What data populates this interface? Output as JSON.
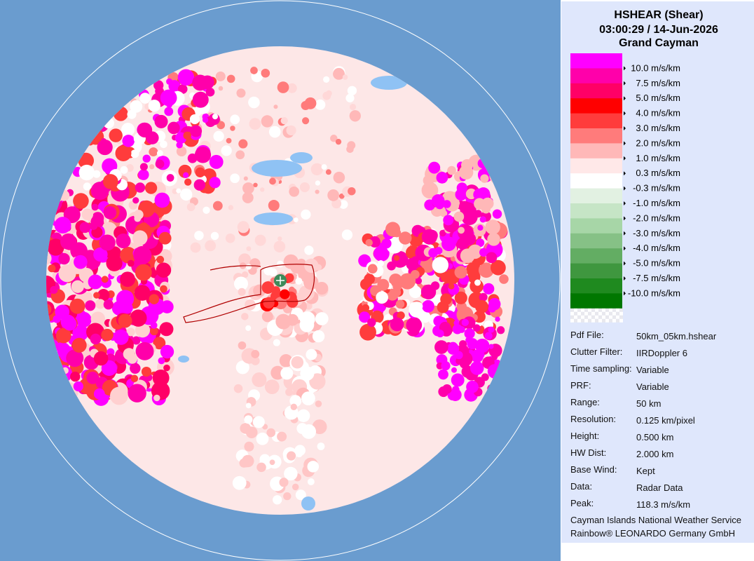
{
  "header": {
    "title": "HSHEAR (Shear)",
    "time": "03:00:29 / 14-Jun-2026",
    "location": "Grand Cayman"
  },
  "legend": {
    "colors": [
      "#ff00ff",
      "#ff00aa",
      "#ff0066",
      "#ff0000",
      "#ff3c3c",
      "#ff7b7b",
      "#ffb8b8",
      "#ffe8e8",
      "#ffffff",
      "#e2f1e2",
      "#c6e5c6",
      "#a7d6a7",
      "#86c186",
      "#63ad63",
      "#3f973f",
      "#1f8a1f",
      "#007700"
    ],
    "labels": [
      "10.0 m/s/km",
      "7.5 m/s/km",
      "5.0 m/s/km",
      "4.0 m/s/km",
      "3.0 m/s/km",
      "2.0 m/s/km",
      "1.0 m/s/km",
      "0.3 m/s/km",
      "-0.3 m/s/km",
      "-1.0 m/s/km",
      "-2.0 m/s/km",
      "-3.0 m/s/km",
      "-4.0 m/s/km",
      "-5.0 m/s/km",
      "-7.5 m/s/km",
      "-10.0 m/s/km"
    ]
  },
  "info": [
    [
      "Pdf File:",
      "50km_05km.hshear"
    ],
    [
      "Clutter Filter:",
      "IIRDoppler 6"
    ],
    [
      "Time sampling:",
      "Variable"
    ],
    [
      "PRF:",
      "Variable"
    ],
    [
      "Range:",
      "50 km"
    ],
    [
      "Resolution:",
      "0.125 km/pixel"
    ],
    [
      "Height:",
      "0.500 km"
    ],
    [
      "HW Dist:",
      "2.000 km"
    ],
    [
      "Base Wind:",
      "Kept"
    ],
    [
      "Data:",
      "Radar Data"
    ],
    [
      "Peak:",
      "118.3 m/s/km"
    ]
  ],
  "footer": [
    "Cayman Islands National Weather Service",
    "Rainbow® LEONARDO Germany GmbH"
  ]
}
